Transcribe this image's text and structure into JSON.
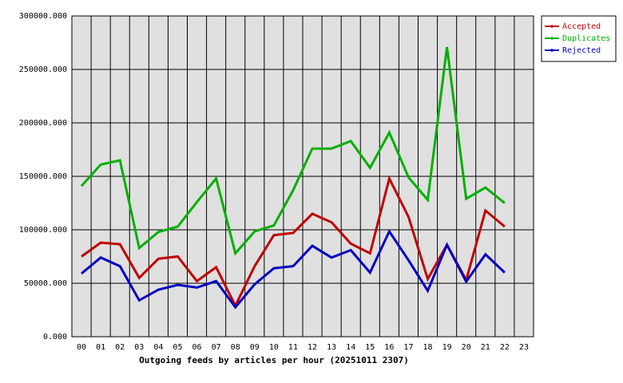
{
  "chart_data": {
    "type": "line",
    "title": "Outgoing feeds by articles per hour (20251011 2307)",
    "categories": [
      "00",
      "01",
      "02",
      "03",
      "04",
      "05",
      "06",
      "07",
      "08",
      "09",
      "10",
      "11",
      "12",
      "13",
      "14",
      "15",
      "16",
      "17",
      "18",
      "19",
      "20",
      "21",
      "22",
      "23"
    ],
    "series": [
      {
        "name": "Accepted",
        "color": "#c00000",
        "values": [
          75000,
          88000,
          86500,
          55000,
          73000,
          75000,
          52000,
          65000,
          29000,
          66000,
          95000,
          97000,
          115000,
          107000,
          87000,
          78000,
          148000,
          112000,
          54000,
          86000,
          53000,
          118000,
          103000,
          null
        ]
      },
      {
        "name": "Duplicates",
        "color": "#00b000",
        "values": [
          141000,
          161000,
          165000,
          83000,
          98000,
          103000,
          126000,
          148000,
          78000,
          98500,
          104000,
          137000,
          176000,
          176000,
          183000,
          158000,
          191000,
          149000,
          128000,
          271000,
          129000,
          139500,
          125000,
          null
        ]
      },
      {
        "name": "Rejected",
        "color": "#0000c0",
        "values": [
          59000,
          74000,
          66000,
          34000,
          44000,
          48500,
          46000,
          52000,
          27500,
          49000,
          64000,
          66000,
          85000,
          74000,
          81000,
          60000,
          98500,
          71500,
          43000,
          86000,
          51500,
          77000,
          60000,
          null
        ]
      }
    ],
    "ylim": [
      0,
      300000
    ],
    "yticks": [
      {
        "value": 0,
        "label": "0.000"
      },
      {
        "value": 50000,
        "label": "50000.000"
      },
      {
        "value": 100000,
        "label": "100000.000"
      },
      {
        "value": 150000,
        "label": "150000.000"
      },
      {
        "value": 200000,
        "label": "200000.000"
      },
      {
        "value": 250000,
        "label": "250000.000"
      },
      {
        "value": 300000,
        "label": "300000.000"
      }
    ],
    "grid": true,
    "legend": "top-right"
  }
}
